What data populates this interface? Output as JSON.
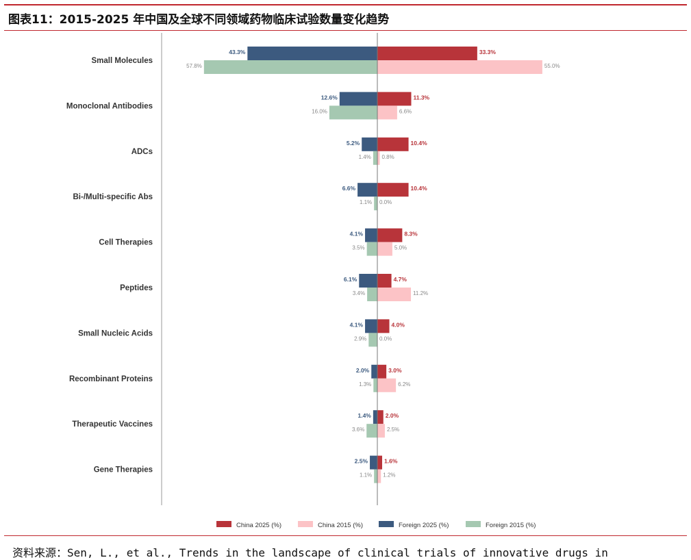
{
  "header": {
    "title": "图表11：2015-2025 年中国及全球不同领域药物临床试验数量变化趋势"
  },
  "source": {
    "text": "资料来源：Sen, L., et al., Trends in the landscape of clinical trials of innovative drugs in"
  },
  "colors": {
    "china_2025": "#b8343a",
    "china_2015": "#fcc3c6",
    "foreign_2025": "#3c5a7f",
    "foreign_2015": "#a5c8b1",
    "china_2025_label": "#b8343a",
    "foreign_2025_label": "#3c5a7f",
    "label_2015": "#888888",
    "axis": "#888888",
    "category_text": "#333333"
  },
  "chart_data": {
    "type": "bar",
    "orientation": "horizontal-diverging",
    "categories": [
      "Small Molecules",
      "Monoclonal Antibodies",
      "ADCs",
      "Bi-/Multi-specific Abs",
      "Cell Therapies",
      "Peptides",
      "Small Nucleic Acids",
      "Recombinant Proteins",
      "Therapeutic Vaccines",
      "Gene Therapies"
    ],
    "series": [
      {
        "name": "China 2025 (%)",
        "side": "right",
        "values": [
          33.3,
          11.3,
          10.4,
          10.4,
          8.3,
          4.7,
          4.0,
          3.0,
          2.0,
          1.6
        ],
        "labels": [
          "33.3%",
          "11.3%",
          "10.4%",
          "10.4%",
          "8.3%",
          "4.7%",
          "4.0%",
          "3.0%",
          "2.0%",
          "1.6%"
        ]
      },
      {
        "name": "China 2015 (%)",
        "side": "right",
        "values": [
          55.0,
          6.6,
          0.8,
          0.0,
          5.0,
          11.2,
          0.0,
          6.2,
          2.5,
          1.2
        ],
        "labels": [
          "55.0%",
          "6.6%",
          "0.8%",
          "0.0%",
          "5.0%",
          "11.2%",
          "0.0%",
          "6.2%",
          "2.5%",
          "1.2%"
        ]
      },
      {
        "name": "Foreign 2025 (%)",
        "side": "left",
        "values": [
          43.3,
          12.6,
          5.2,
          6.6,
          4.1,
          6.1,
          4.1,
          2.0,
          1.4,
          2.5
        ],
        "labels": [
          "43.3%",
          "12.6%",
          "5.2%",
          "6.6%",
          "4.1%",
          "6.1%",
          "4.1%",
          "2.0%",
          "1.4%",
          "2.5%"
        ]
      },
      {
        "name": "Foreign 2015 (%)",
        "side": "left",
        "values": [
          57.8,
          16.0,
          1.4,
          1.1,
          3.5,
          3.4,
          2.9,
          1.3,
          3.6,
          1.1
        ],
        "labels": [
          "57.8%",
          "16.0%",
          "1.4%",
          "1.1%",
          "3.5%",
          "3.4%",
          "2.9%",
          "1.3%",
          "3.6%",
          "1.1%"
        ]
      }
    ],
    "legend_order": [
      "China 2025 (%)",
      "China 2015 (%)",
      "Foreign 2025 (%)",
      "Foreign 2015 (%)"
    ],
    "legend_position": "bottom-center",
    "grid": false,
    "xlim": [
      -60,
      60
    ]
  }
}
